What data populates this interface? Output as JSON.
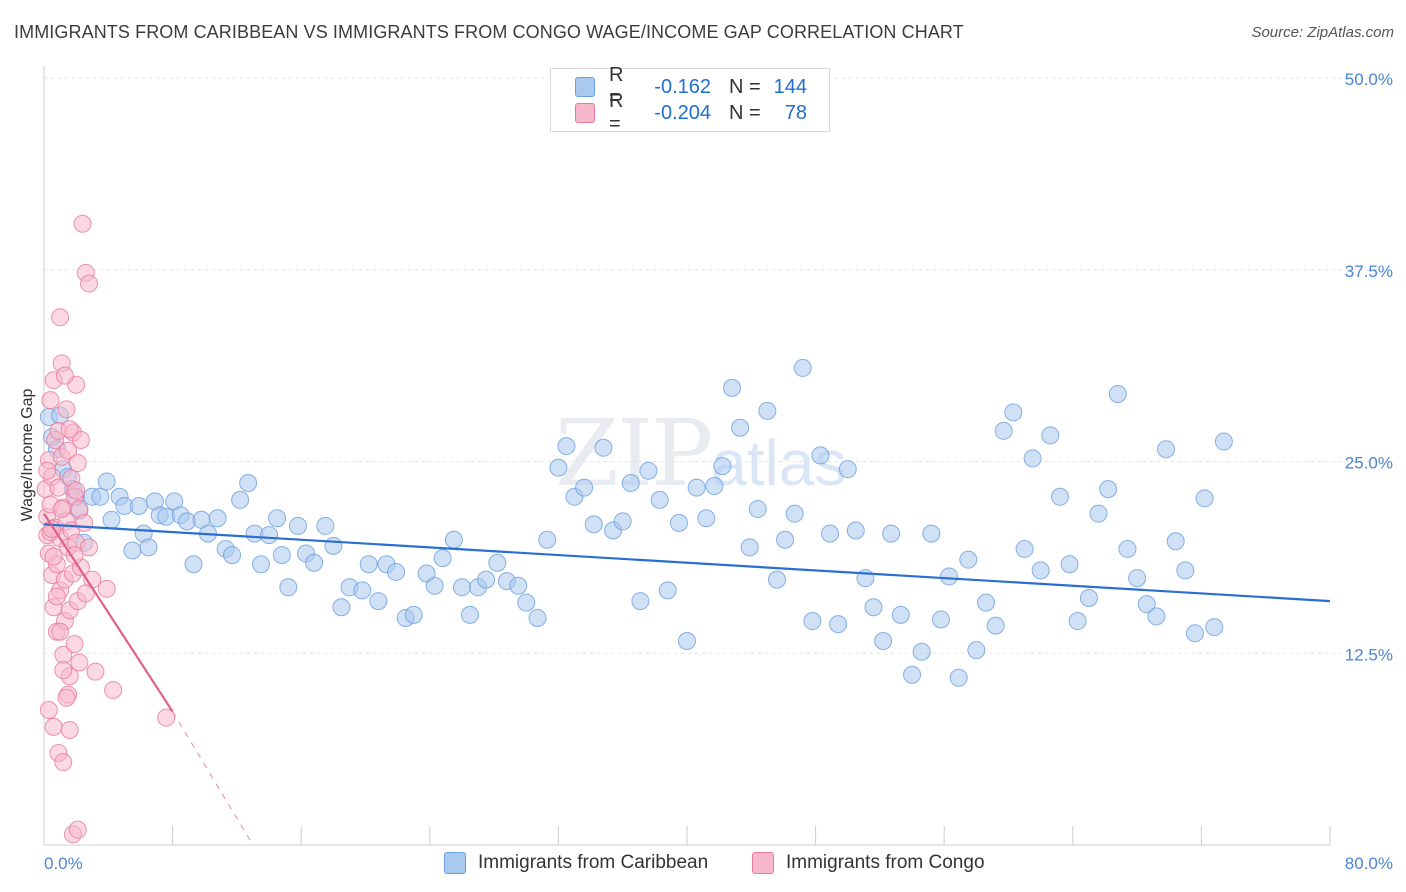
{
  "title": "IMMIGRANTS FROM CARIBBEAN VS IMMIGRANTS FROM CONGO WAGE/INCOME GAP CORRELATION CHART",
  "source": "Source: ZipAtlas.com",
  "watermark": {
    "zip": "ZIP",
    "atlas": "atlas"
  },
  "legend": {
    "rows": [
      {
        "r_label": "R =",
        "r_value": "-0.162",
        "n_label": "N =",
        "n_value": "144",
        "color": "#aac9ee"
      },
      {
        "r_label": "R =",
        "r_value": "-0.204",
        "n_label": "N =",
        "n_value": "78",
        "color": "#f7b8cb"
      }
    ]
  },
  "bottom_legend": [
    {
      "label": "Immigrants from Caribbean",
      "color": "#aac9ee"
    },
    {
      "label": "Immigrants from Congo",
      "color": "#f7b8cb"
    }
  ],
  "chart_data": {
    "type": "scatter",
    "title": "IMMIGRANTS FROM CARIBBEAN VS IMMIGRANTS FROM CONGO WAGE/INCOME GAP CORRELATION CHART",
    "xlabel": "",
    "ylabel": "Wage/Income Gap",
    "xlim": [
      0,
      80
    ],
    "ylim": [
      0,
      50
    ],
    "x_tick_labels": [
      "0.0%",
      "80.0%"
    ],
    "y_ticks": [
      12.5,
      25.0,
      37.5,
      50.0
    ],
    "y_tick_labels": [
      "12.5%",
      "25.0%",
      "37.5%",
      "50.0%"
    ],
    "grid": true,
    "legend_position": "top-center",
    "series": [
      {
        "name": "Immigrants from Caribbean",
        "color": "#6a9fe0",
        "fill": "#aac9ee",
        "trend": {
          "x": [
            0,
            80
          ],
          "y": [
            20.9,
            15.9
          ]
        },
        "points": [
          [
            0.3,
            27.9
          ],
          [
            0.5,
            26.6
          ],
          [
            0.8,
            25.8
          ],
          [
            1.0,
            28.0
          ],
          [
            1.2,
            24.5
          ],
          [
            1.5,
            24.0
          ],
          [
            1.8,
            23.2
          ],
          [
            2.0,
            22.7
          ],
          [
            2.2,
            21.8
          ],
          [
            2.5,
            19.7
          ],
          [
            3.0,
            22.7
          ],
          [
            3.5,
            22.7
          ],
          [
            3.9,
            23.7
          ],
          [
            4.2,
            21.2
          ],
          [
            4.7,
            22.7
          ],
          [
            5.0,
            22.1
          ],
          [
            5.5,
            19.2
          ],
          [
            5.9,
            22.1
          ],
          [
            6.2,
            20.3
          ],
          [
            6.5,
            19.4
          ],
          [
            6.9,
            22.4
          ],
          [
            7.2,
            21.5
          ],
          [
            7.6,
            21.4
          ],
          [
            8.1,
            22.4
          ],
          [
            8.5,
            21.5
          ],
          [
            8.9,
            21.1
          ],
          [
            9.3,
            18.3
          ],
          [
            9.8,
            21.2
          ],
          [
            10.2,
            20.3
          ],
          [
            10.8,
            21.3
          ],
          [
            11.3,
            19.3
          ],
          [
            11.7,
            18.9
          ],
          [
            12.2,
            22.5
          ],
          [
            12.7,
            23.6
          ],
          [
            13.1,
            20.3
          ],
          [
            13.5,
            18.3
          ],
          [
            14.0,
            20.2
          ],
          [
            14.5,
            21.3
          ],
          [
            14.8,
            18.9
          ],
          [
            15.2,
            16.8
          ],
          [
            15.8,
            20.8
          ],
          [
            16.3,
            19.0
          ],
          [
            16.8,
            18.4
          ],
          [
            17.5,
            20.8
          ],
          [
            18.0,
            19.5
          ],
          [
            18.5,
            15.5
          ],
          [
            19.0,
            16.8
          ],
          [
            19.8,
            16.6
          ],
          [
            20.2,
            18.3
          ],
          [
            20.8,
            15.9
          ],
          [
            21.3,
            18.3
          ],
          [
            21.9,
            17.8
          ],
          [
            22.5,
            14.8
          ],
          [
            23.0,
            15.0
          ],
          [
            23.8,
            17.7
          ],
          [
            24.3,
            16.9
          ],
          [
            24.8,
            18.7
          ],
          [
            25.5,
            19.9
          ],
          [
            26.0,
            16.8
          ],
          [
            26.5,
            15.0
          ],
          [
            27.0,
            16.8
          ],
          [
            27.5,
            17.3
          ],
          [
            28.2,
            18.4
          ],
          [
            28.8,
            17.2
          ],
          [
            29.5,
            16.9
          ],
          [
            30.0,
            15.8
          ],
          [
            30.7,
            14.8
          ],
          [
            31.3,
            19.9
          ],
          [
            32.0,
            24.6
          ],
          [
            32.5,
            26.0
          ],
          [
            33.0,
            22.7
          ],
          [
            33.6,
            23.3
          ],
          [
            34.2,
            20.9
          ],
          [
            34.8,
            25.9
          ],
          [
            35.4,
            20.5
          ],
          [
            36.0,
            21.1
          ],
          [
            36.5,
            23.6
          ],
          [
            37.1,
            15.9
          ],
          [
            37.6,
            24.4
          ],
          [
            38.3,
            22.5
          ],
          [
            38.8,
            16.6
          ],
          [
            39.5,
            21.0
          ],
          [
            40.0,
            13.3
          ],
          [
            40.6,
            23.3
          ],
          [
            41.2,
            21.3
          ],
          [
            41.7,
            23.4
          ],
          [
            42.2,
            24.7
          ],
          [
            42.8,
            29.8
          ],
          [
            43.3,
            27.2
          ],
          [
            43.9,
            19.4
          ],
          [
            44.4,
            21.9
          ],
          [
            45.0,
            28.3
          ],
          [
            45.6,
            17.3
          ],
          [
            46.1,
            19.9
          ],
          [
            46.7,
            21.6
          ],
          [
            47.2,
            31.1
          ],
          [
            47.8,
            14.6
          ],
          [
            48.3,
            25.4
          ],
          [
            48.9,
            20.3
          ],
          [
            49.4,
            14.4
          ],
          [
            50.0,
            24.5
          ],
          [
            50.5,
            20.5
          ],
          [
            51.1,
            17.4
          ],
          [
            51.6,
            15.5
          ],
          [
            52.2,
            13.3
          ],
          [
            52.7,
            20.3
          ],
          [
            53.3,
            15.0
          ],
          [
            54.0,
            11.1
          ],
          [
            54.6,
            12.6
          ],
          [
            55.2,
            20.3
          ],
          [
            55.8,
            14.7
          ],
          [
            56.3,
            17.5
          ],
          [
            56.9,
            10.9
          ],
          [
            57.5,
            18.6
          ],
          [
            58.0,
            12.7
          ],
          [
            58.6,
            15.8
          ],
          [
            59.2,
            14.3
          ],
          [
            59.7,
            27.0
          ],
          [
            60.3,
            28.2
          ],
          [
            61.0,
            19.3
          ],
          [
            61.5,
            25.2
          ],
          [
            62.0,
            17.9
          ],
          [
            62.6,
            26.7
          ],
          [
            63.2,
            22.7
          ],
          [
            63.8,
            18.3
          ],
          [
            64.3,
            14.6
          ],
          [
            65.0,
            16.1
          ],
          [
            65.6,
            21.6
          ],
          [
            66.2,
            23.2
          ],
          [
            66.8,
            29.4
          ],
          [
            67.4,
            19.3
          ],
          [
            68.0,
            17.4
          ],
          [
            68.6,
            15.7
          ],
          [
            69.2,
            14.9
          ],
          [
            69.8,
            25.8
          ],
          [
            70.4,
            19.8
          ],
          [
            71.0,
            17.9
          ],
          [
            71.6,
            13.8
          ],
          [
            72.2,
            22.6
          ],
          [
            72.8,
            14.2
          ],
          [
            73.4,
            26.3
          ]
        ]
      },
      {
        "name": "Immigrants from Congo",
        "color": "#e8789c",
        "fill": "#f7b8cb",
        "trend": {
          "x": [
            0,
            8
          ],
          "y": [
            21.6,
            8.7
          ]
        },
        "trend_extension": {
          "x": [
            8,
            13
          ],
          "y": [
            8.7,
            0
          ]
        },
        "points": [
          [
            0.1,
            23.2
          ],
          [
            0.2,
            21.4
          ],
          [
            0.2,
            20.2
          ],
          [
            0.3,
            25.1
          ],
          [
            0.3,
            19.0
          ],
          [
            0.4,
            29.0
          ],
          [
            0.4,
            22.2
          ],
          [
            0.5,
            17.6
          ],
          [
            0.5,
            24.0
          ],
          [
            0.6,
            30.3
          ],
          [
            0.6,
            15.5
          ],
          [
            0.7,
            26.4
          ],
          [
            0.7,
            20.7
          ],
          [
            0.8,
            18.3
          ],
          [
            0.8,
            13.9
          ],
          [
            0.9,
            27.0
          ],
          [
            0.9,
            23.3
          ],
          [
            1.0,
            16.6
          ],
          [
            1.0,
            20.0
          ],
          [
            1.1,
            31.4
          ],
          [
            1.1,
            25.3
          ],
          [
            1.2,
            12.4
          ],
          [
            1.2,
            22.0
          ],
          [
            1.3,
            17.3
          ],
          [
            1.3,
            14.6
          ],
          [
            1.4,
            28.4
          ],
          [
            1.4,
            21.1
          ],
          [
            1.5,
            25.7
          ],
          [
            1.5,
            19.4
          ],
          [
            1.6,
            15.3
          ],
          [
            1.6,
            11.0
          ],
          [
            1.7,
            23.9
          ],
          [
            1.7,
            20.5
          ],
          [
            1.8,
            26.9
          ],
          [
            1.8,
            17.7
          ],
          [
            1.9,
            13.1
          ],
          [
            1.9,
            22.7
          ],
          [
            2.0,
            30.0
          ],
          [
            2.0,
            19.7
          ],
          [
            2.1,
            24.9
          ],
          [
            2.1,
            15.9
          ],
          [
            2.2,
            21.9
          ],
          [
            2.2,
            11.9
          ],
          [
            2.3,
            26.4
          ],
          [
            2.3,
            18.1
          ],
          [
            0.3,
            8.8
          ],
          [
            0.6,
            7.7
          ],
          [
            0.9,
            6.0
          ],
          [
            1.2,
            5.4
          ],
          [
            1.5,
            9.8
          ],
          [
            1.8,
            0.7
          ],
          [
            2.1,
            1.0
          ],
          [
            2.4,
            40.5
          ],
          [
            2.6,
            37.3
          ],
          [
            2.8,
            36.6
          ],
          [
            1.0,
            34.4
          ],
          [
            1.3,
            30.6
          ],
          [
            1.6,
            27.1
          ],
          [
            2.0,
            23.1
          ],
          [
            2.5,
            21.0
          ],
          [
            2.8,
            19.4
          ],
          [
            3.0,
            17.3
          ],
          [
            0.2,
            24.4
          ],
          [
            0.4,
            20.4
          ],
          [
            0.6,
            18.8
          ],
          [
            0.8,
            16.2
          ],
          [
            1.0,
            13.9
          ],
          [
            1.2,
            11.4
          ],
          [
            1.4,
            9.6
          ],
          [
            1.6,
            7.5
          ],
          [
            2.6,
            16.4
          ],
          [
            3.2,
            11.3
          ],
          [
            3.9,
            16.7
          ],
          [
            4.3,
            10.1
          ],
          [
            7.6,
            8.3
          ],
          [
            0.5,
            20.6
          ],
          [
            1.1,
            21.9
          ],
          [
            1.9,
            18.9
          ]
        ]
      }
    ]
  }
}
